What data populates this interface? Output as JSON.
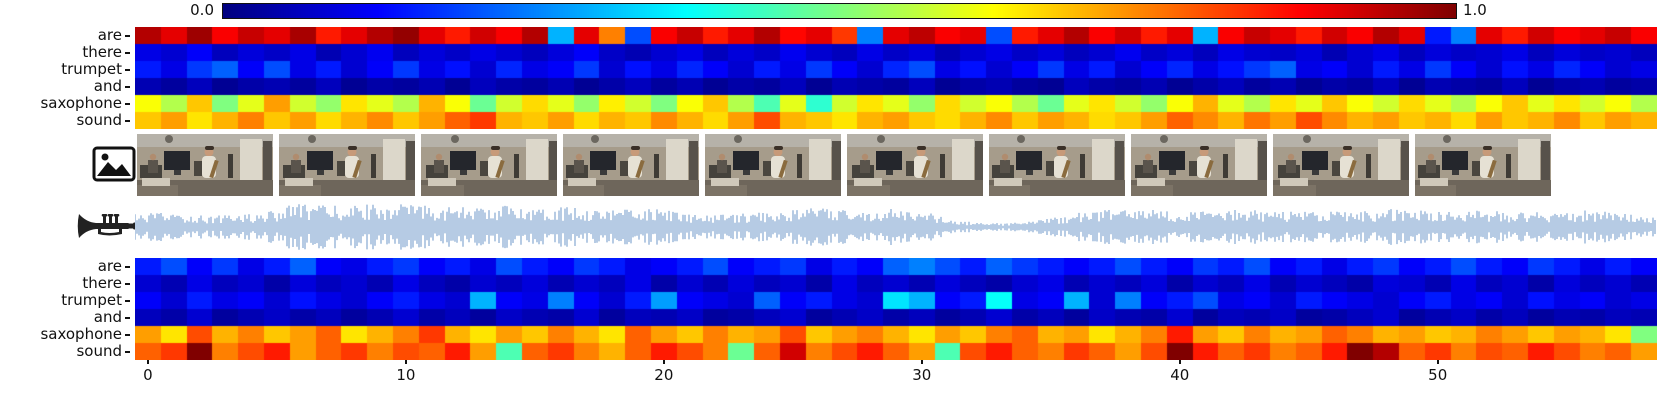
{
  "colorbar": {
    "min_label": "0.0",
    "max_label": "1.0",
    "colormap": "jet"
  },
  "question_tokens": [
    "are",
    "there",
    "trumpet",
    "and",
    "saxophone",
    "sound"
  ],
  "x_axis": {
    "tick_labels": [
      "0",
      "10",
      "20",
      "30",
      "40",
      "50"
    ],
    "tick_values": [
      0,
      10,
      20,
      30,
      40,
      50
    ]
  },
  "media": {
    "video_frame_count": 10,
    "video_icon": "photos-icon",
    "audio_icon": "trumpet-icon",
    "waveform_color": "#b6cbe4"
  },
  "chart_data": [
    {
      "type": "heatmap",
      "name": "visual-attention-heatmap",
      "rows": [
        "are",
        "there",
        "trumpet",
        "and",
        "saxophone",
        "sound"
      ],
      "n_cols": 59,
      "colormap": "jet",
      "vmin": 0.0,
      "vmax": 1.0,
      "values": [
        [
          0.95,
          0.9,
          0.97,
          0.88,
          0.93,
          0.9,
          0.96,
          0.85,
          0.9,
          0.95,
          0.98,
          0.9,
          0.85,
          0.92,
          0.88,
          0.95,
          0.3,
          0.9,
          0.75,
          0.2,
          0.88,
          0.93,
          0.85,
          0.9,
          0.95,
          0.87,
          0.9,
          0.82,
          0.25,
          0.9,
          0.94,
          0.88,
          0.9,
          0.2,
          0.85,
          0.9,
          0.95,
          0.88,
          0.92,
          0.85,
          0.9,
          0.3,
          0.88,
          0.93,
          0.9,
          0.85,
          0.92,
          0.88,
          0.95,
          0.9,
          0.15,
          0.25,
          0.9,
          0.85,
          0.92,
          0.88,
          0.9,
          0.93,
          0.88
        ],
        [
          0.1,
          0.08,
          0.12,
          0.06,
          0.09,
          0.07,
          0.1,
          0.05,
          0.08,
          0.11,
          0.06,
          0.09,
          0.07,
          0.1,
          0.08,
          0.06,
          0.09,
          0.12,
          0.07,
          0.05,
          0.08,
          0.1,
          0.06,
          0.09,
          0.07,
          0.11,
          0.08,
          0.06,
          0.1,
          0.07,
          0.09,
          0.05,
          0.08,
          0.1,
          0.07,
          0.09,
          0.06,
          0.08,
          0.11,
          0.07,
          0.09,
          0.06,
          0.1,
          0.08,
          0.07,
          0.09,
          0.05,
          0.08,
          0.1,
          0.06,
          0.09,
          0.07,
          0.08,
          0.1,
          0.06,
          0.09,
          0.07,
          0.08,
          0.06
        ],
        [
          0.15,
          0.1,
          0.18,
          0.22,
          0.12,
          0.2,
          0.1,
          0.15,
          0.08,
          0.12,
          0.18,
          0.1,
          0.14,
          0.08,
          0.16,
          0.1,
          0.12,
          0.18,
          0.08,
          0.14,
          0.1,
          0.16,
          0.12,
          0.08,
          0.15,
          0.1,
          0.18,
          0.12,
          0.08,
          0.16,
          0.2,
          0.1,
          0.14,
          0.08,
          0.12,
          0.18,
          0.1,
          0.15,
          0.08,
          0.12,
          0.16,
          0.1,
          0.14,
          0.18,
          0.22,
          0.1,
          0.12,
          0.08,
          0.15,
          0.1,
          0.18,
          0.12,
          0.08,
          0.14,
          0.1,
          0.16,
          0.12,
          0.08,
          0.1
        ],
        [
          0.05,
          0.03,
          0.06,
          0.02,
          0.04,
          0.05,
          0.03,
          0.06,
          0.02,
          0.04,
          0.03,
          0.05,
          0.02,
          0.06,
          0.04,
          0.03,
          0.05,
          0.02,
          0.04,
          0.06,
          0.03,
          0.05,
          0.02,
          0.04,
          0.03,
          0.06,
          0.02,
          0.05,
          0.04,
          0.03,
          0.06,
          0.02,
          0.04,
          0.05,
          0.03,
          0.02,
          0.06,
          0.04,
          0.03,
          0.05,
          0.02,
          0.04,
          0.06,
          0.03,
          0.05,
          0.02,
          0.04,
          0.03,
          0.06,
          0.02,
          0.05,
          0.04,
          0.03,
          0.06,
          0.02,
          0.04,
          0.05,
          0.03,
          0.04
        ],
        [
          0.62,
          0.55,
          0.68,
          0.5,
          0.6,
          0.72,
          0.58,
          0.52,
          0.65,
          0.6,
          0.55,
          0.7,
          0.62,
          0.48,
          0.58,
          0.66,
          0.6,
          0.52,
          0.64,
          0.58,
          0.5,
          0.62,
          0.68,
          0.55,
          0.45,
          0.6,
          0.42,
          0.58,
          0.65,
          0.6,
          0.52,
          0.66,
          0.58,
          0.62,
          0.55,
          0.48,
          0.6,
          0.65,
          0.58,
          0.52,
          0.62,
          0.7,
          0.6,
          0.55,
          0.65,
          0.6,
          0.68,
          0.62,
          0.58,
          0.66,
          0.6,
          0.55,
          0.62,
          0.68,
          0.6,
          0.65,
          0.58,
          0.62,
          0.55
        ],
        [
          0.68,
          0.72,
          0.65,
          0.7,
          0.75,
          0.68,
          0.72,
          0.66,
          0.7,
          0.74,
          0.68,
          0.72,
          0.78,
          0.82,
          0.7,
          0.68,
          0.72,
          0.66,
          0.7,
          0.68,
          0.74,
          0.7,
          0.66,
          0.72,
          0.8,
          0.7,
          0.68,
          0.65,
          0.7,
          0.72,
          0.68,
          0.66,
          0.7,
          0.74,
          0.68,
          0.72,
          0.7,
          0.66,
          0.68,
          0.72,
          0.78,
          0.74,
          0.7,
          0.76,
          0.72,
          0.8,
          0.74,
          0.7,
          0.72,
          0.68,
          0.7,
          0.66,
          0.72,
          0.68,
          0.7,
          0.74,
          0.68,
          0.72,
          0.7
        ]
      ]
    },
    {
      "type": "heatmap",
      "name": "audio-attention-heatmap",
      "rows": [
        "are",
        "there",
        "trumpet",
        "and",
        "saxophone",
        "sound"
      ],
      "n_cols": 59,
      "colormap": "jet",
      "vmin": 0.0,
      "vmax": 1.0,
      "values": [
        [
          0.15,
          0.2,
          0.12,
          0.18,
          0.1,
          0.15,
          0.22,
          0.12,
          0.1,
          0.15,
          0.18,
          0.12,
          0.15,
          0.1,
          0.2,
          0.15,
          0.12,
          0.18,
          0.15,
          0.1,
          0.12,
          0.15,
          0.2,
          0.12,
          0.15,
          0.18,
          0.1,
          0.15,
          0.12,
          0.22,
          0.25,
          0.2,
          0.15,
          0.22,
          0.18,
          0.15,
          0.12,
          0.15,
          0.2,
          0.15,
          0.12,
          0.18,
          0.15,
          0.2,
          0.12,
          0.15,
          0.1,
          0.15,
          0.18,
          0.12,
          0.15,
          0.2,
          0.15,
          0.12,
          0.18,
          0.15,
          0.1,
          0.15,
          0.12
        ],
        [
          0.08,
          0.05,
          0.1,
          0.06,
          0.08,
          0.04,
          0.09,
          0.06,
          0.08,
          0.05,
          0.1,
          0.06,
          0.04,
          0.08,
          0.06,
          0.09,
          0.05,
          0.08,
          0.06,
          0.1,
          0.04,
          0.08,
          0.05,
          0.09,
          0.06,
          0.08,
          0.04,
          0.1,
          0.06,
          0.08,
          0.05,
          0.09,
          0.06,
          0.04,
          0.08,
          0.1,
          0.05,
          0.08,
          0.06,
          0.09,
          0.04,
          0.08,
          0.06,
          0.1,
          0.05,
          0.08,
          0.06,
          0.04,
          0.09,
          0.08,
          0.05,
          0.1,
          0.06,
          0.08,
          0.04,
          0.09,
          0.06,
          0.08,
          0.05
        ],
        [
          0.12,
          0.08,
          0.15,
          0.1,
          0.12,
          0.08,
          0.14,
          0.1,
          0.08,
          0.12,
          0.15,
          0.1,
          0.08,
          0.3,
          0.12,
          0.1,
          0.25,
          0.12,
          0.08,
          0.15,
          0.28,
          0.12,
          0.1,
          0.08,
          0.22,
          0.12,
          0.15,
          0.1,
          0.08,
          0.35,
          0.3,
          0.12,
          0.15,
          0.38,
          0.1,
          0.12,
          0.3,
          0.08,
          0.25,
          0.12,
          0.15,
          0.2,
          0.1,
          0.12,
          0.08,
          0.15,
          0.12,
          0.1,
          0.08,
          0.12,
          0.15,
          0.1,
          0.12,
          0.08,
          0.14,
          0.1,
          0.12,
          0.08,
          0.1
        ],
        [
          0.06,
          0.04,
          0.08,
          0.03,
          0.05,
          0.07,
          0.04,
          0.06,
          0.03,
          0.05,
          0.08,
          0.04,
          0.06,
          0.03,
          0.07,
          0.05,
          0.04,
          0.08,
          0.03,
          0.06,
          0.05,
          0.07,
          0.03,
          0.04,
          0.06,
          0.08,
          0.03,
          0.05,
          0.07,
          0.04,
          0.06,
          0.03,
          0.05,
          0.08,
          0.04,
          0.06,
          0.03,
          0.07,
          0.05,
          0.04,
          0.08,
          0.03,
          0.06,
          0.05,
          0.07,
          0.03,
          0.04,
          0.06,
          0.08,
          0.03,
          0.05,
          0.07,
          0.04,
          0.06,
          0.03,
          0.05,
          0.04,
          0.06,
          0.05
        ],
        [
          0.72,
          0.65,
          0.8,
          0.7,
          0.75,
          0.68,
          0.72,
          0.78,
          0.65,
          0.7,
          0.75,
          0.82,
          0.7,
          0.65,
          0.72,
          0.68,
          0.75,
          0.7,
          0.65,
          0.78,
          0.72,
          0.68,
          0.75,
          0.7,
          0.72,
          0.8,
          0.68,
          0.72,
          0.75,
          0.7,
          0.65,
          0.72,
          0.68,
          0.75,
          0.78,
          0.7,
          0.72,
          0.65,
          0.7,
          0.75,
          0.85,
          0.72,
          0.68,
          0.75,
          0.7,
          0.72,
          0.78,
          0.75,
          0.7,
          0.72,
          0.68,
          0.7,
          0.75,
          0.72,
          0.68,
          0.72,
          0.7,
          0.65,
          0.5
        ],
        [
          0.78,
          0.82,
          1.0,
          0.75,
          0.8,
          0.85,
          0.72,
          0.78,
          0.82,
          0.75,
          0.8,
          0.78,
          0.85,
          0.72,
          0.45,
          0.78,
          0.82,
          0.75,
          0.7,
          0.78,
          0.85,
          0.8,
          0.75,
          0.48,
          0.78,
          0.92,
          0.75,
          0.8,
          0.85,
          0.78,
          0.72,
          0.45,
          0.8,
          0.85,
          0.78,
          0.75,
          0.82,
          0.78,
          0.72,
          0.8,
          1.0,
          0.85,
          0.78,
          0.82,
          0.75,
          0.78,
          0.85,
          1.0,
          0.95,
          0.78,
          0.82,
          0.75,
          0.8,
          0.78,
          0.85,
          0.8,
          0.75,
          0.78,
          0.72
        ]
      ]
    },
    {
      "type": "area",
      "name": "audio-waveform",
      "x_range": [
        0,
        58
      ],
      "envelope": [
        0.5,
        0.55,
        0.48,
        0.45,
        0.52,
        0.55,
        0.92,
        0.85,
        0.8,
        0.88,
        0.9,
        0.85,
        0.8,
        0.75,
        0.82,
        0.85,
        0.8,
        0.75,
        0.7,
        0.75,
        0.7,
        0.52,
        0.45,
        0.5,
        0.6,
        0.7,
        0.75,
        0.7,
        0.65,
        0.7,
        0.65,
        0.3,
        0.18,
        0.15,
        0.2,
        0.35,
        0.6,
        0.65,
        0.7,
        0.65,
        0.6,
        0.65,
        0.7,
        0.65,
        0.6,
        0.65,
        0.6,
        0.65,
        0.7,
        0.65,
        0.6,
        0.65,
        0.6,
        0.55,
        0.6,
        0.65,
        0.6,
        0.5,
        0.35
      ]
    }
  ]
}
